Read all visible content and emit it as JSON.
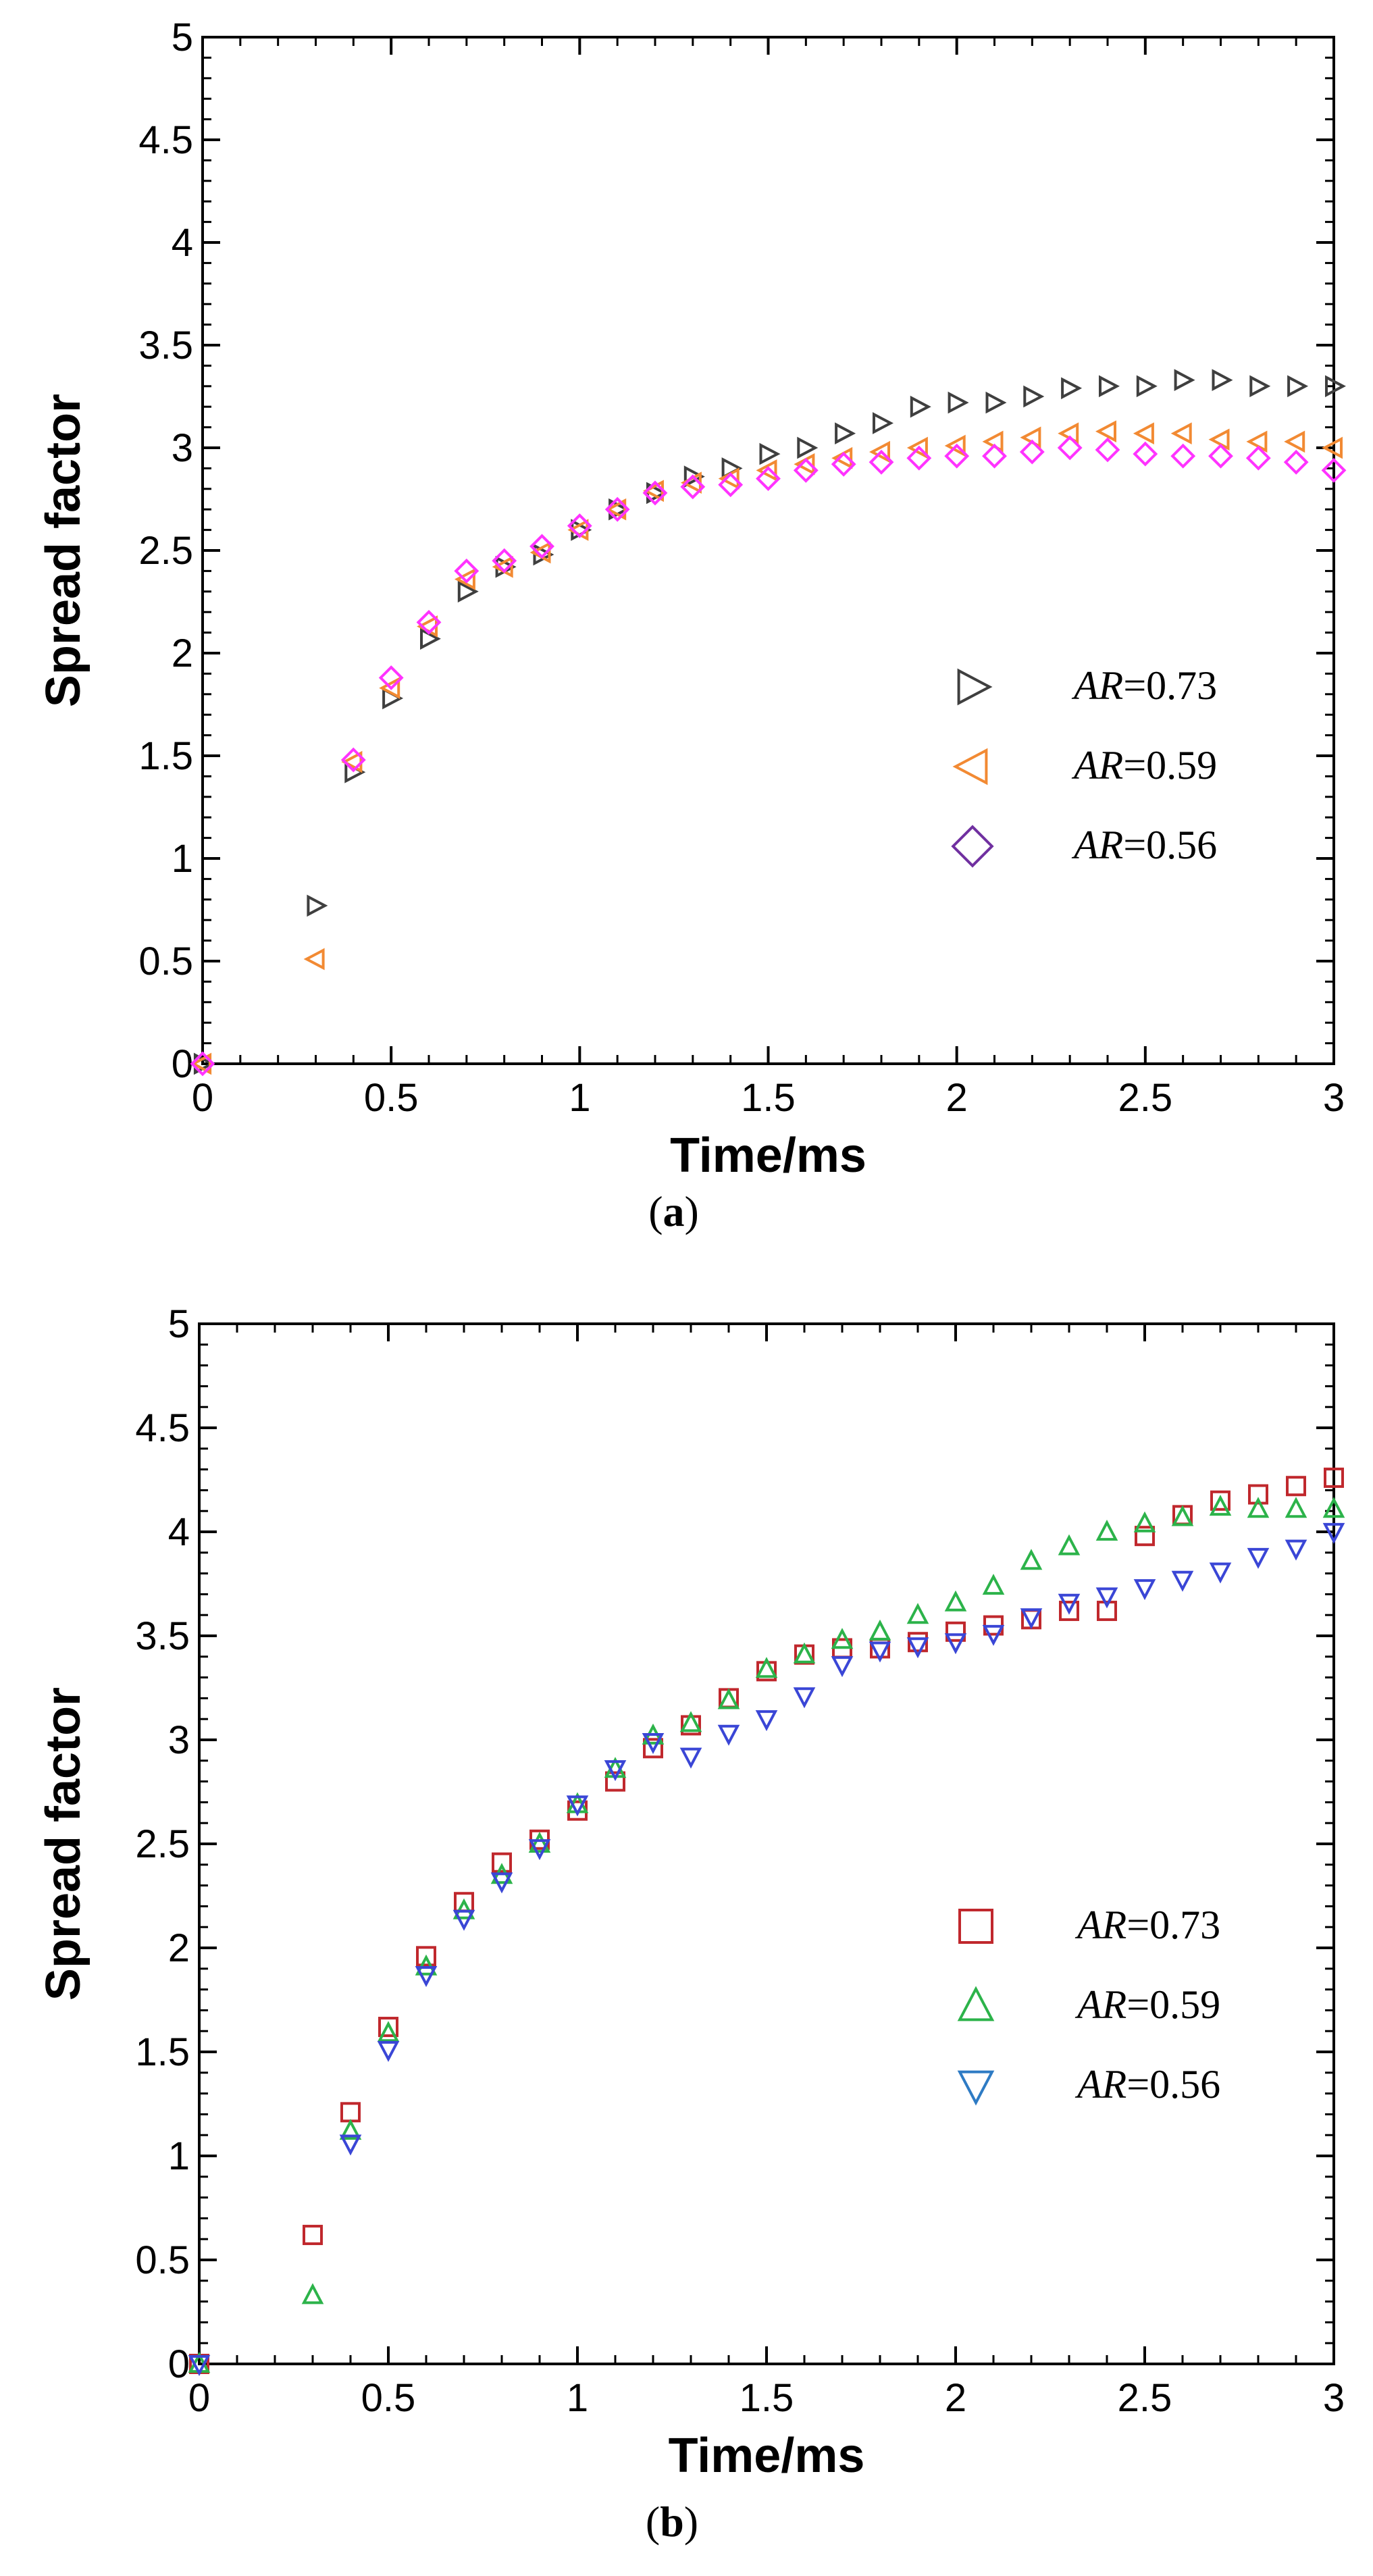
{
  "chart_data": [
    {
      "type": "scatter",
      "panel": "a",
      "caption": {
        "open": "(",
        "letter": "a",
        "close": ")"
      },
      "xlabel": "Time/ms",
      "ylabel": "Spread factor",
      "xlim": [
        0,
        3
      ],
      "ylim": [
        0,
        5
      ],
      "xticks": [
        "0",
        "0.5",
        "1",
        "1.5",
        "2",
        "2.5",
        "3"
      ],
      "yticks": [
        "0",
        "0.5",
        "1",
        "1.5",
        "2",
        "2.5",
        "3",
        "3.5",
        "4",
        "4.5",
        "5"
      ],
      "legend_position": "right",
      "series": [
        {
          "name": "AR=0.73",
          "name_italic": "AR",
          "name_rest": "=0.73",
          "marker": "triangle-right",
          "color": "#3f3f3f",
          "x": [
            0,
            0.3,
            0.4,
            0.5,
            0.6,
            0.7,
            0.8,
            0.9,
            1.0,
            1.1,
            1.2,
            1.3,
            1.4,
            1.5,
            1.6,
            1.7,
            1.8,
            1.9,
            2.0,
            2.1,
            2.2,
            2.3,
            2.4,
            2.5,
            2.6,
            2.7,
            2.8,
            2.9,
            3.0
          ],
          "y": [
            0,
            0.77,
            1.42,
            1.78,
            2.07,
            2.3,
            2.42,
            2.48,
            2.6,
            2.7,
            2.78,
            2.86,
            2.9,
            2.97,
            3.0,
            3.07,
            3.12,
            3.2,
            3.22,
            3.22,
            3.25,
            3.29,
            3.3,
            3.3,
            3.33,
            3.33,
            3.3,
            3.3,
            3.3
          ]
        },
        {
          "name": "AR=0.59",
          "name_italic": "AR",
          "name_rest": "=0.59",
          "marker": "triangle-left",
          "color": "#f28a33",
          "x": [
            0,
            0.3,
            0.4,
            0.5,
            0.6,
            0.7,
            0.8,
            0.9,
            1.0,
            1.1,
            1.2,
            1.3,
            1.4,
            1.5,
            1.6,
            1.7,
            1.8,
            1.9,
            2.0,
            2.1,
            2.2,
            2.3,
            2.4,
            2.5,
            2.6,
            2.7,
            2.8,
            2.9,
            3.0
          ],
          "y": [
            0,
            0.51,
            1.47,
            1.83,
            2.13,
            2.36,
            2.42,
            2.49,
            2.6,
            2.7,
            2.79,
            2.83,
            2.85,
            2.89,
            2.92,
            2.95,
            2.98,
            3.0,
            3.01,
            3.03,
            3.05,
            3.07,
            3.08,
            3.07,
            3.07,
            3.04,
            3.03,
            3.03,
            3.0
          ]
        },
        {
          "name": "AR=0.56",
          "name_italic": "AR",
          "name_rest": "=0.56",
          "marker": "diamond",
          "color": "#ff33ff",
          "legend_color": "#7030a0",
          "x": [
            0,
            0.4,
            0.5,
            0.6,
            0.7,
            0.8,
            0.9,
            1.0,
            1.1,
            1.2,
            1.3,
            1.4,
            1.5,
            1.6,
            1.7,
            1.8,
            1.9,
            2.0,
            2.1,
            2.2,
            2.3,
            2.4,
            2.5,
            2.6,
            2.7,
            2.8,
            2.9,
            3.0
          ],
          "y": [
            0,
            1.48,
            1.88,
            2.15,
            2.4,
            2.45,
            2.52,
            2.62,
            2.7,
            2.78,
            2.81,
            2.82,
            2.85,
            2.89,
            2.92,
            2.93,
            2.95,
            2.96,
            2.96,
            2.98,
            3.0,
            2.99,
            2.97,
            2.96,
            2.96,
            2.95,
            2.93,
            2.89
          ]
        }
      ]
    },
    {
      "type": "scatter",
      "panel": "b",
      "caption": {
        "open": "(",
        "letter": "b",
        "close": ")"
      },
      "xlabel": "Time/ms",
      "ylabel": "Spread factor",
      "xlim": [
        0,
        3
      ],
      "ylim": [
        0,
        5
      ],
      "xticks": [
        "0",
        "0.5",
        "1",
        "1.5",
        "2",
        "2.5",
        "3"
      ],
      "yticks": [
        "0",
        "0.5",
        "1",
        "1.5",
        "2",
        "2.5",
        "3",
        "3.5",
        "4",
        "4.5",
        "5"
      ],
      "legend_position": "right",
      "series": [
        {
          "name": "AR=0.73",
          "name_italic": "AR",
          "name_rest": "=0.73",
          "marker": "square",
          "color": "#c0282d",
          "x": [
            0,
            0.3,
            0.4,
            0.5,
            0.6,
            0.7,
            0.8,
            0.9,
            1.0,
            1.1,
            1.2,
            1.3,
            1.4,
            1.5,
            1.6,
            1.7,
            1.8,
            1.9,
            2.0,
            2.1,
            2.2,
            2.3,
            2.4,
            2.5,
            2.6,
            2.7,
            2.8,
            2.9,
            3.0
          ],
          "y": [
            0,
            0.62,
            1.21,
            1.62,
            1.96,
            2.22,
            2.41,
            2.52,
            2.66,
            2.8,
            2.96,
            3.07,
            3.2,
            3.33,
            3.41,
            3.44,
            3.44,
            3.47,
            3.52,
            3.55,
            3.58,
            3.62,
            3.62,
            3.98,
            4.08,
            4.15,
            4.18,
            4.22,
            4.26
          ]
        },
        {
          "name": "AR=0.59",
          "name_italic": "AR",
          "name_rest": "=0.59",
          "marker": "triangle-up",
          "color": "#2cb34a",
          "x": [
            0,
            0.3,
            0.4,
            0.5,
            0.6,
            0.7,
            0.8,
            0.9,
            1.0,
            1.1,
            1.2,
            1.3,
            1.4,
            1.5,
            1.6,
            1.7,
            1.8,
            1.9,
            2.0,
            2.1,
            2.2,
            2.3,
            2.4,
            2.5,
            2.6,
            2.7,
            2.8,
            2.9,
            3.0
          ],
          "y": [
            0,
            0.33,
            1.12,
            1.59,
            1.91,
            2.18,
            2.35,
            2.5,
            2.69,
            2.86,
            3.02,
            3.08,
            3.19,
            3.34,
            3.41,
            3.48,
            3.52,
            3.6,
            3.66,
            3.74,
            3.86,
            3.93,
            4.0,
            4.04,
            4.07,
            4.12,
            4.11,
            4.11,
            4.11
          ]
        },
        {
          "name": "AR=0.56",
          "name_italic": "AR",
          "name_rest": "=0.56",
          "marker": "triangle-down",
          "color": "#3a46d6",
          "legend_color": "#2e7bc4",
          "x": [
            0,
            0.4,
            0.5,
            0.6,
            0.7,
            0.8,
            0.9,
            1.0,
            1.1,
            1.2,
            1.3,
            1.4,
            1.5,
            1.6,
            1.7,
            1.8,
            1.9,
            2.0,
            2.1,
            2.2,
            2.3,
            2.4,
            2.5,
            2.6,
            2.7,
            2.8,
            2.9,
            3.0
          ],
          "y": [
            0,
            1.06,
            1.51,
            1.87,
            2.14,
            2.32,
            2.48,
            2.69,
            2.86,
            2.99,
            2.92,
            3.03,
            3.1,
            3.21,
            3.36,
            3.43,
            3.45,
            3.47,
            3.51,
            3.59,
            3.66,
            3.69,
            3.73,
            3.77,
            3.81,
            3.88,
            3.92,
            4.0
          ]
        }
      ]
    }
  ]
}
